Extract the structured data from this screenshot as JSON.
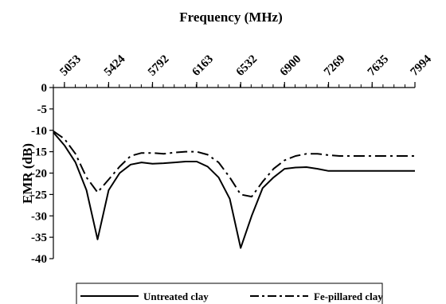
{
  "chart_data": {
    "type": "line",
    "title": "",
    "xlabel": "Frequency (MHz)",
    "ylabel": "EMR (dB)",
    "x_tick_labels": [
      "5053",
      "5424",
      "5792",
      "6163",
      "6532",
      "6900",
      "7269",
      "7635",
      "7994"
    ],
    "xlim": [
      5053,
      7994
    ],
    "y_ticks": [
      0,
      -5,
      -10,
      -15,
      -20,
      -25,
      -30,
      -35,
      -40
    ],
    "y_tick_labels": [
      "0",
      "-5",
      "-10",
      "-15",
      "-20",
      "-25",
      "-30",
      "-35",
      "-40"
    ],
    "ylim": [
      -40,
      0
    ],
    "x_axis_position": "top",
    "grid": false,
    "legend_position": "bottom",
    "series": [
      {
        "name": "Untreated clay",
        "style": "solid",
        "color": "#000000",
        "x": [
          4960,
          5053,
          5146,
          5238,
          5331,
          5424,
          5516,
          5608,
          5700,
          5792,
          5885,
          5977,
          6070,
          6163,
          6255,
          6347,
          6440,
          6532,
          6624,
          6716,
          6808,
          6900,
          6992,
          7084,
          7177,
          7269,
          7361,
          7452,
          7544,
          7635,
          7725,
          7816,
          7905,
          7994
        ],
        "values": [
          -10.5,
          -13.5,
          -17.5,
          -24,
          -35.5,
          -24,
          -20,
          -18,
          -17.5,
          -17.8,
          -17.7,
          -17.5,
          -17.3,
          -17.3,
          -18.5,
          -21,
          -26,
          -37.5,
          -30,
          -23.5,
          -21,
          -19,
          -18.7,
          -18.6,
          -19,
          -19.5,
          -19.5,
          -19.5,
          -19.5,
          -19.5,
          -19.5,
          -19.5,
          -19.5,
          -19.5
        ]
      },
      {
        "name": "Fe-pillared clay",
        "style": "dash-dot",
        "color": "#000000",
        "x": [
          4960,
          5053,
          5146,
          5238,
          5331,
          5424,
          5516,
          5608,
          5700,
          5792,
          5885,
          5977,
          6070,
          6163,
          6255,
          6347,
          6440,
          6532,
          6624,
          6716,
          6808,
          6900,
          6992,
          7084,
          7177,
          7269,
          7361,
          7452,
          7544,
          7635,
          7725,
          7816,
          7905,
          7994
        ],
        "values": [
          -10.2,
          -12,
          -15.5,
          -21,
          -24.5,
          -21.5,
          -18.5,
          -16,
          -15.3,
          -15.3,
          -15.5,
          -15.2,
          -15,
          -15,
          -15.7,
          -17.5,
          -21,
          -25,
          -25.5,
          -22,
          -19,
          -17,
          -16,
          -15.5,
          -15.5,
          -15.8,
          -16,
          -16,
          -16,
          -16,
          -16,
          -16,
          -16,
          -16
        ]
      }
    ]
  }
}
